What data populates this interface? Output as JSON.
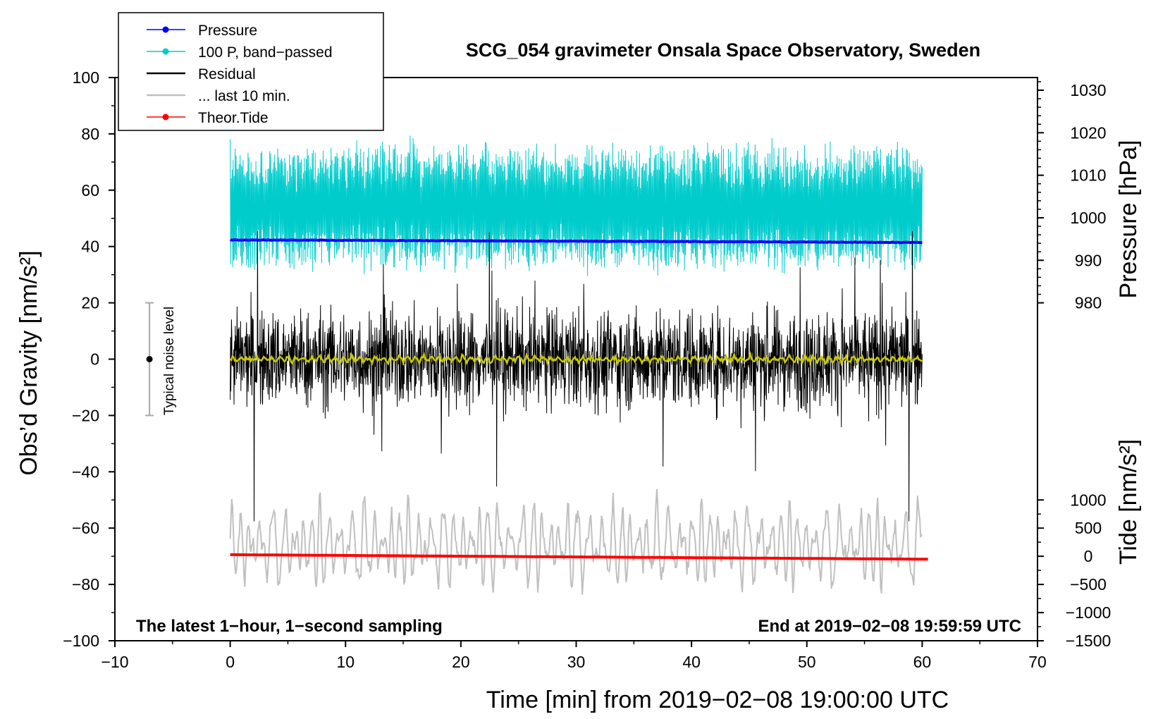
{
  "chart_data": {
    "type": "line",
    "title": "SCG_054 gravimeter Onsala Space Observatory, Sweden",
    "xlabel": "Time [min] from 2019−02−08 19:00:00 UTC",
    "ylabel_left": "Obs’d Gravity [nm/s²]",
    "ylabel_right_top": "Pressure [hPa]",
    "ylabel_right_bottom": "Tide [nm/s²]",
    "xlim": [
      -10,
      70
    ],
    "ylim_left": [
      -100,
      100
    ],
    "x_ticks": [
      "−10",
      "0",
      "10",
      "20",
      "30",
      "40",
      "50",
      "60",
      "70"
    ],
    "x_tick_values": [
      -10,
      0,
      10,
      20,
      30,
      40,
      50,
      60,
      70
    ],
    "y_ticks_left": [
      "−100",
      "−80",
      "−60",
      "−40",
      "−20",
      "0",
      "20",
      "40",
      "60",
      "80",
      "100"
    ],
    "y_tick_values_left": [
      -100,
      -80,
      -60,
      -40,
      -20,
      0,
      20,
      40,
      60,
      80,
      100
    ],
    "pressure_axis": {
      "ticks": [
        "980",
        "990",
        "1000",
        "1010",
        "1020",
        "1030"
      ],
      "tick_values": [
        980,
        990,
        1000,
        1010,
        1020,
        1030
      ],
      "gravity_at_980": 20,
      "gravity_per_hPa": 1.51
    },
    "tide_axis": {
      "ticks": [
        "−1500",
        "−1000",
        "−500",
        "0",
        "500",
        "1000"
      ],
      "tick_values": [
        -1500,
        -1000,
        -500,
        0,
        500,
        1000
      ],
      "gravity_at_minus1500": -100,
      "gravity_per_unit": 0.02
    },
    "legend": [
      {
        "label": "Pressure",
        "color": "#0000ff",
        "style": "line-dot"
      },
      {
        "label": "100 P, band−passed",
        "color": "#00cccc",
        "style": "line-dot"
      },
      {
        "label": "Residual",
        "color": "#000000",
        "style": "line"
      },
      {
        "label": "... last 10 min.",
        "color": "#c0c0c0",
        "style": "line"
      },
      {
        "label": "Theor.Tide",
        "color": "#ff0000",
        "style": "line-dot"
      }
    ],
    "series": [
      {
        "name": "Pressure",
        "color": "#0000ff",
        "axis": "pressure",
        "x": [
          0,
          60
        ],
        "values": [
          994.8,
          994.2
        ]
      },
      {
        "name": "100 P, band−passed",
        "color": "#00cccc",
        "axis": "gravity",
        "x_range": [
          0,
          60
        ],
        "center": 54,
        "amplitude": 21
      },
      {
        "name": "Residual",
        "color": "#000000",
        "axis": "gravity",
        "x_range": [
          0,
          60
        ],
        "center": 0,
        "amplitude": 19
      },
      {
        "name": "Residual (smoothed)",
        "color": "#c8c800",
        "axis": "gravity",
        "x_range": [
          0,
          60
        ],
        "center": 0,
        "amplitude": 1.5
      },
      {
        "name": "... last 10 min.",
        "color": "#c0c0c0",
        "axis": "gravity",
        "x_range": [
          0,
          60
        ],
        "center": -66,
        "amplitude": 14
      },
      {
        "name": "Theor.Tide",
        "color": "#ff0000",
        "axis": "tide",
        "x": [
          0,
          60.5
        ],
        "values": [
          28,
          -52
        ]
      }
    ],
    "noise_bar": {
      "label": "Typical noise level",
      "x": -7,
      "center": 0,
      "low": -20,
      "high": 20
    },
    "annotations": {
      "left": "The latest 1−hour, 1−second sampling",
      "right": "End at 2019−02−08 19:59:59 UTC"
    }
  }
}
